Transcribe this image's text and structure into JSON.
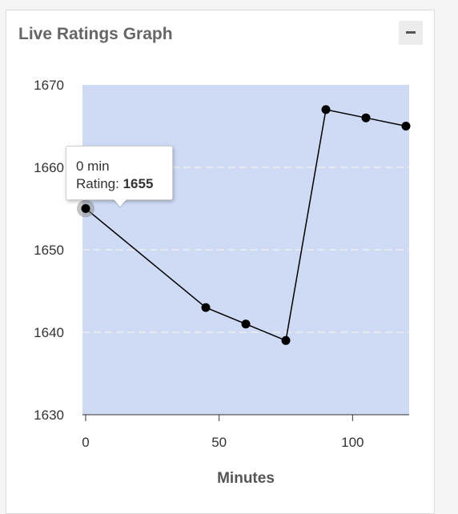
{
  "panel": {
    "title": "Live Ratings Graph"
  },
  "tooltip": {
    "time_label": "0 min",
    "rating_prefix": "Rating: ",
    "rating_value": "1655"
  },
  "chart_data": {
    "type": "line",
    "xlabel": "Minutes",
    "ylabel": "",
    "xlim": [
      0,
      120
    ],
    "ylim": [
      1630,
      1670
    ],
    "x_ticks": [
      "0",
      "50",
      "100"
    ],
    "y_ticks": [
      "1630",
      "1640",
      "1650",
      "1660",
      "1670"
    ],
    "grid": true,
    "series": [
      {
        "x": [
          0,
          45,
          60,
          75,
          90,
          105,
          120
        ],
        "y": [
          1655,
          1643,
          1641,
          1639,
          1667,
          1666,
          1665
        ]
      }
    ],
    "colors": {
      "plot_background": "#cfdaf4",
      "line": "#000000",
      "marker": "#000000",
      "grid": "#eeeeee",
      "highlight": "#888888"
    }
  }
}
